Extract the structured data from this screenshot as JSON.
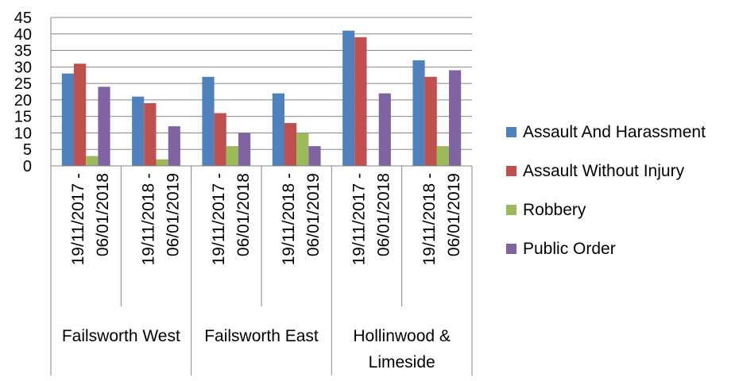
{
  "chart_data": {
    "type": "bar",
    "title": "",
    "xlabel": "",
    "ylabel": "",
    "ylim": [
      0,
      45
    ],
    "yticks": [
      0,
      5,
      10,
      15,
      20,
      25,
      30,
      35,
      40,
      45
    ],
    "grid": true,
    "legend_position": "right",
    "groups": [
      {
        "label": "Failsworth West",
        "periods": [
          {
            "line1": "19/11/2017 -",
            "line2": "06/01/2018"
          },
          {
            "line1": "19/11/2018 -",
            "line2": "06/01/2019"
          }
        ]
      },
      {
        "label": "Failsworth East",
        "periods": [
          {
            "line1": "19/11/2017 -",
            "line2": "06/01/2018"
          },
          {
            "line1": "19/11/2018 -",
            "line2": "06/01/2019"
          }
        ]
      },
      {
        "label_line1": "Hollinwood &",
        "label_line2": "Limeside",
        "periods": [
          {
            "line1": "19/11/2017 -",
            "line2": "06/01/2018"
          },
          {
            "line1": "19/11/2018 -",
            "line2": "06/01/2019"
          }
        ]
      }
    ],
    "series": [
      {
        "name": "Assault  And Harassment",
        "color": "#4f81bd",
        "values": [
          28,
          21,
          27,
          22,
          41,
          32
        ]
      },
      {
        "name": "Assault Without Injury",
        "color": "#c0504d",
        "values": [
          31,
          19,
          16,
          13,
          39,
          27
        ]
      },
      {
        "name": "Robbery",
        "color": "#9bbb59",
        "values": [
          3,
          2,
          6,
          10,
          0,
          6
        ]
      },
      {
        "name": "Public Order",
        "color": "#8064a2",
        "values": [
          24,
          12,
          10,
          6,
          22,
          29
        ]
      }
    ]
  }
}
